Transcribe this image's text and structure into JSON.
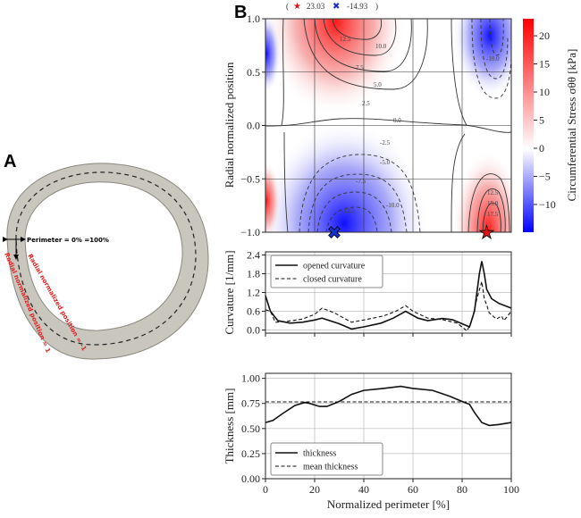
{
  "panel_a": {
    "label": "A",
    "perimeter_text": "Perimeter = 0% =100%",
    "radial_inner_text": "Radial normalized position = -1",
    "radial_outer_text": "Radial normalized position = 1",
    "colors": {
      "wall": "#c9c6bd",
      "annotation": "#e02020"
    }
  },
  "panel_b": {
    "label": "B"
  },
  "chart_data": [
    {
      "type": "heatmap",
      "title": "",
      "header": {
        "open": "(",
        "max_value": "23.03",
        "min_value": "-14.93",
        "close": ")",
        "max_marker": "star-icon",
        "min_marker": "cross-icon"
      },
      "ylabel": "Radial normalized position",
      "ylim": [
        -1.0,
        1.0
      ],
      "xlim": [
        0,
        100
      ],
      "yticks": [
        "1.0",
        "0.5",
        "0.0",
        "−0.5",
        "−1.0"
      ],
      "ytick_values": [
        1.0,
        0.5,
        0.0,
        -0.5,
        -1.0
      ],
      "colorbar": {
        "label": "Circumferential Stress σθθ [kPa]",
        "range": [
          -14.93,
          23.03
        ],
        "ticks": [
          "20",
          "15",
          "10",
          "5",
          "0",
          "−5",
          "−10"
        ],
        "tick_values": [
          20,
          15,
          10,
          5,
          0,
          -5,
          -10
        ],
        "colormap": "bwr"
      },
      "max_point": {
        "x": 90,
        "y": -1.0,
        "value": 23.03
      },
      "min_point": {
        "x": 28,
        "y": -1.0,
        "value": -14.93
      },
      "contour_labels": [
        "12.5",
        "10.0",
        "7.5",
        "5.0",
        "2.5",
        "0.0",
        "-2.5",
        "-5.0",
        "-7.5",
        "-10.0",
        "-12.5",
        "15.0",
        "17.5"
      ],
      "grid": true
    },
    {
      "type": "line",
      "ylabel": "Curvature [1/mm]",
      "ylim": [
        -0.1,
        2.5
      ],
      "yticks": [
        "2.4",
        "1.8",
        "1.2",
        "0.6",
        "0.0"
      ],
      "ytick_values": [
        2.4,
        1.8,
        1.2,
        0.6,
        0.0
      ],
      "xlim": [
        0,
        100
      ],
      "legend": "top-left",
      "grid": true,
      "series": [
        {
          "name": "opened curvature",
          "style": "solid",
          "x": [
            0,
            2,
            5,
            10,
            15,
            20,
            23,
            30,
            35,
            40,
            47,
            52,
            57,
            62,
            66,
            72,
            76,
            80,
            83,
            85,
            87,
            88,
            89,
            90,
            92,
            95,
            100
          ],
          "y": [
            1.1,
            0.6,
            0.3,
            0.22,
            0.25,
            0.32,
            0.38,
            0.2,
            0.03,
            0.1,
            0.22,
            0.38,
            0.6,
            0.38,
            0.3,
            0.37,
            0.33,
            0.2,
            0.1,
            0.6,
            1.8,
            2.2,
            1.8,
            1.3,
            1.0,
            0.85,
            0.7
          ]
        },
        {
          "name": "closed curvature",
          "style": "dashed",
          "x": [
            0,
            2,
            4,
            8,
            15,
            20,
            23,
            28,
            35,
            40,
            48,
            53,
            57,
            60,
            66,
            72,
            78,
            82,
            84,
            86,
            88,
            89,
            90,
            91,
            94,
            96,
            97,
            100
          ],
          "y": [
            0.65,
            0.6,
            0.25,
            0.27,
            0.35,
            0.5,
            0.7,
            0.55,
            0.25,
            0.32,
            0.45,
            0.6,
            0.78,
            0.6,
            0.38,
            0.33,
            0.22,
            -0.03,
            0.3,
            1.0,
            1.55,
            1.0,
            0.8,
            0.55,
            0.35,
            0.45,
            0.3,
            0.6
          ]
        }
      ]
    },
    {
      "type": "line",
      "ylabel": "Thickness [mm]",
      "xlabel": "Normalized perimeter [%]",
      "ylim": [
        0,
        1.05
      ],
      "yticks": [
        "1.00",
        "0.75",
        "0.50",
        "0.25",
        "0.00"
      ],
      "ytick_values": [
        1.0,
        0.75,
        0.5,
        0.25,
        0.0
      ],
      "xlim": [
        0,
        100
      ],
      "xticks": [
        "0",
        "20",
        "40",
        "60",
        "80",
        "100"
      ],
      "xtick_values": [
        0,
        20,
        40,
        60,
        80,
        100
      ],
      "legend": "bottom-left",
      "grid": true,
      "series": [
        {
          "name": "thickness",
          "style": "solid",
          "x": [
            0,
            3,
            7,
            12,
            16,
            18,
            22,
            25,
            30,
            35,
            40,
            48,
            55,
            60,
            68,
            75,
            80,
            83,
            85,
            88,
            91,
            95,
            100
          ],
          "y": [
            0.56,
            0.58,
            0.65,
            0.73,
            0.76,
            0.75,
            0.72,
            0.72,
            0.77,
            0.84,
            0.88,
            0.9,
            0.92,
            0.9,
            0.88,
            0.82,
            0.77,
            0.74,
            0.66,
            0.56,
            0.53,
            0.54,
            0.56
          ]
        },
        {
          "name": "mean thickness",
          "style": "dashed",
          "x": [
            0,
            100
          ],
          "y": [
            0.765,
            0.765
          ]
        }
      ]
    }
  ]
}
